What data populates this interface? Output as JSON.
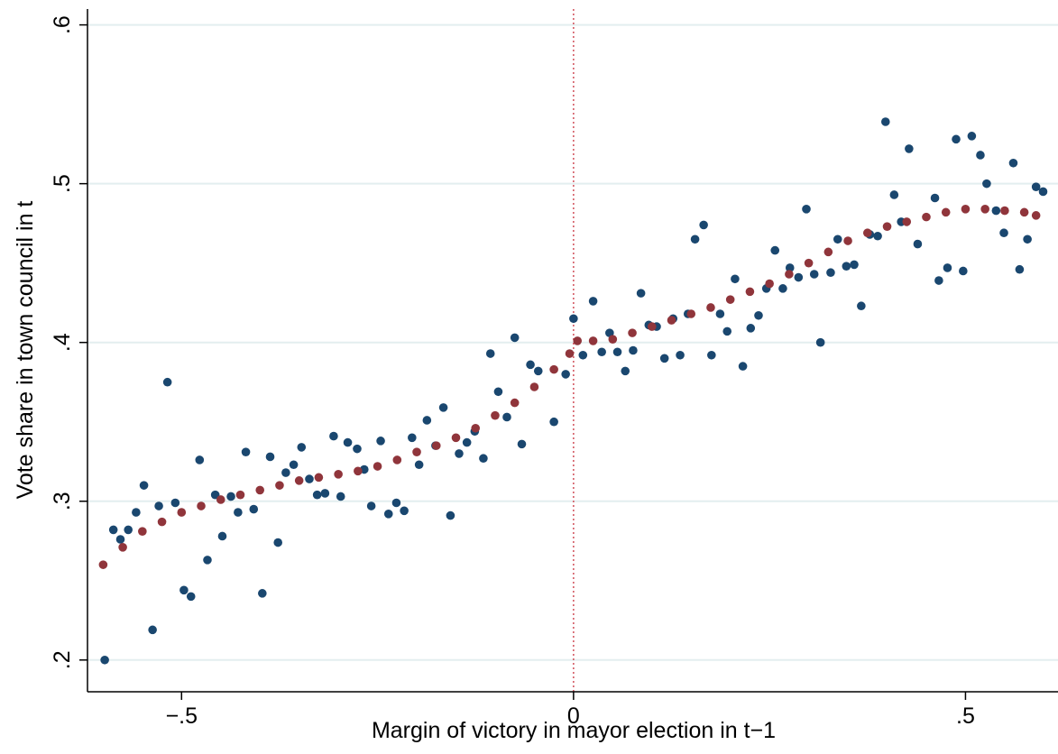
{
  "chart_data": {
    "type": "scatter",
    "xlabel": "Margin of victory in mayor election in t−1",
    "ylabel": "Vote share in town council in t",
    "xlim": [
      -0.62,
      0.618
    ],
    "ylim": [
      0.18,
      0.61
    ],
    "xticks": [
      {
        "value": -0.5,
        "label": "−.5"
      },
      0,
      {
        "value": 0.5,
        "label": ".5"
      }
    ],
    "yticks": [
      {
        "value": 0.2,
        "label": ".2"
      },
      {
        "value": 0.3,
        "label": ".3"
      },
      {
        "value": 0.4,
        "label": ".4"
      },
      {
        "value": 0.5,
        "label": ".5"
      },
      {
        "value": 0.6,
        "label": ".6"
      }
    ],
    "grid": true,
    "xline": 0,
    "xline_color": "#d0505a",
    "grid_color": "#e3eeef",
    "series": [
      {
        "color": "#1a476f",
        "x": [
          -0.598,
          -0.587,
          -0.578,
          -0.568,
          -0.558,
          -0.548,
          -0.537,
          -0.529,
          -0.518,
          -0.508,
          -0.497,
          -0.488,
          -0.477,
          -0.467,
          -0.457,
          -0.448,
          -0.437,
          -0.428,
          -0.418,
          -0.408,
          -0.397,
          -0.387,
          -0.377,
          -0.367,
          -0.357,
          -0.347,
          -0.337,
          -0.327,
          -0.317,
          -0.306,
          -0.297,
          -0.288,
          -0.276,
          -0.267,
          -0.258,
          -0.246,
          -0.236,
          -0.226,
          -0.216,
          -0.206,
          -0.197,
          -0.187,
          -0.176,
          -0.166,
          -0.157,
          -0.146,
          -0.136,
          -0.126,
          -0.115,
          -0.106,
          -0.096,
          -0.085,
          -0.075,
          -0.066,
          -0.055,
          -0.045,
          -0.025,
          -0.01,
          0.0,
          0.012,
          0.025,
          0.036,
          0.046,
          0.056,
          0.066,
          0.076,
          0.086,
          0.096,
          0.106,
          0.116,
          0.127,
          0.136,
          0.146,
          0.155,
          0.166,
          0.176,
          0.187,
          0.196,
          0.206,
          0.216,
          0.226,
          0.236,
          0.246,
          0.257,
          0.267,
          0.276,
          0.287,
          0.297,
          0.307,
          0.315,
          0.328,
          0.337,
          0.348,
          0.358,
          0.367,
          0.378,
          0.388,
          0.398,
          0.409,
          0.418,
          0.428,
          0.439,
          0.461,
          0.466,
          0.477,
          0.488,
          0.497,
          0.508,
          0.519,
          0.527,
          0.539,
          0.549,
          0.561,
          0.569,
          0.579,
          0.59,
          0.599
        ],
        "values": [
          0.2,
          0.282,
          0.276,
          0.282,
          0.293,
          0.31,
          0.219,
          0.297,
          0.375,
          0.299,
          0.244,
          0.24,
          0.326,
          0.263,
          0.304,
          0.278,
          0.303,
          0.293,
          0.331,
          0.295,
          0.242,
          0.328,
          0.274,
          0.318,
          0.323,
          0.334,
          0.314,
          0.304,
          0.305,
          0.341,
          0.303,
          0.337,
          0.333,
          0.32,
          0.297,
          0.338,
          0.292,
          0.299,
          0.294,
          0.34,
          0.323,
          0.351,
          0.335,
          0.359,
          0.291,
          0.33,
          0.337,
          0.344,
          0.327,
          0.393,
          0.369,
          0.353,
          0.403,
          0.336,
          0.386,
          0.382,
          0.35,
          0.38,
          0.415,
          0.392,
          0.426,
          0.394,
          0.406,
          0.394,
          0.382,
          0.395,
          0.431,
          0.411,
          0.41,
          0.39,
          0.415,
          0.392,
          0.418,
          0.465,
          0.474,
          0.392,
          0.418,
          0.407,
          0.44,
          0.385,
          0.409,
          0.417,
          0.434,
          0.458,
          0.434,
          0.447,
          0.441,
          0.484,
          0.443,
          0.4,
          0.444,
          0.465,
          0.448,
          0.449,
          0.423,
          0.468,
          0.467,
          0.539,
          0.493,
          0.476,
          0.522,
          0.462,
          0.491,
          0.439,
          0.447,
          0.528,
          0.445,
          0.53,
          0.518,
          0.5,
          0.483,
          0.469,
          0.513,
          0.446,
          0.465,
          0.498,
          0.495
        ]
      },
      {
        "color": "#90353b",
        "x": [
          -0.6,
          -0.575,
          -0.55,
          -0.525,
          -0.5,
          -0.475,
          -0.45,
          -0.425,
          -0.4,
          -0.375,
          -0.35,
          -0.325,
          -0.3,
          -0.275,
          -0.25,
          -0.225,
          -0.2,
          -0.175,
          -0.15,
          -0.125,
          -0.1,
          -0.075,
          -0.05,
          -0.025,
          -0.005,
          0.005,
          0.025,
          0.05,
          0.075,
          0.1,
          0.125,
          0.15,
          0.175,
          0.2,
          0.225,
          0.25,
          0.275,
          0.3,
          0.325,
          0.35,
          0.375,
          0.4,
          0.425,
          0.45,
          0.475,
          0.5,
          0.525,
          0.55,
          0.575,
          0.59
        ],
        "values": [
          0.26,
          0.271,
          0.281,
          0.287,
          0.293,
          0.297,
          0.301,
          0.304,
          0.307,
          0.31,
          0.313,
          0.315,
          0.317,
          0.319,
          0.322,
          0.326,
          0.331,
          0.335,
          0.34,
          0.346,
          0.354,
          0.362,
          0.372,
          0.383,
          0.393,
          0.401,
          0.401,
          0.402,
          0.406,
          0.41,
          0.414,
          0.418,
          0.422,
          0.427,
          0.432,
          0.437,
          0.443,
          0.45,
          0.457,
          0.464,
          0.469,
          0.473,
          0.476,
          0.479,
          0.482,
          0.484,
          0.484,
          0.483,
          0.482,
          0.48
        ]
      }
    ]
  }
}
